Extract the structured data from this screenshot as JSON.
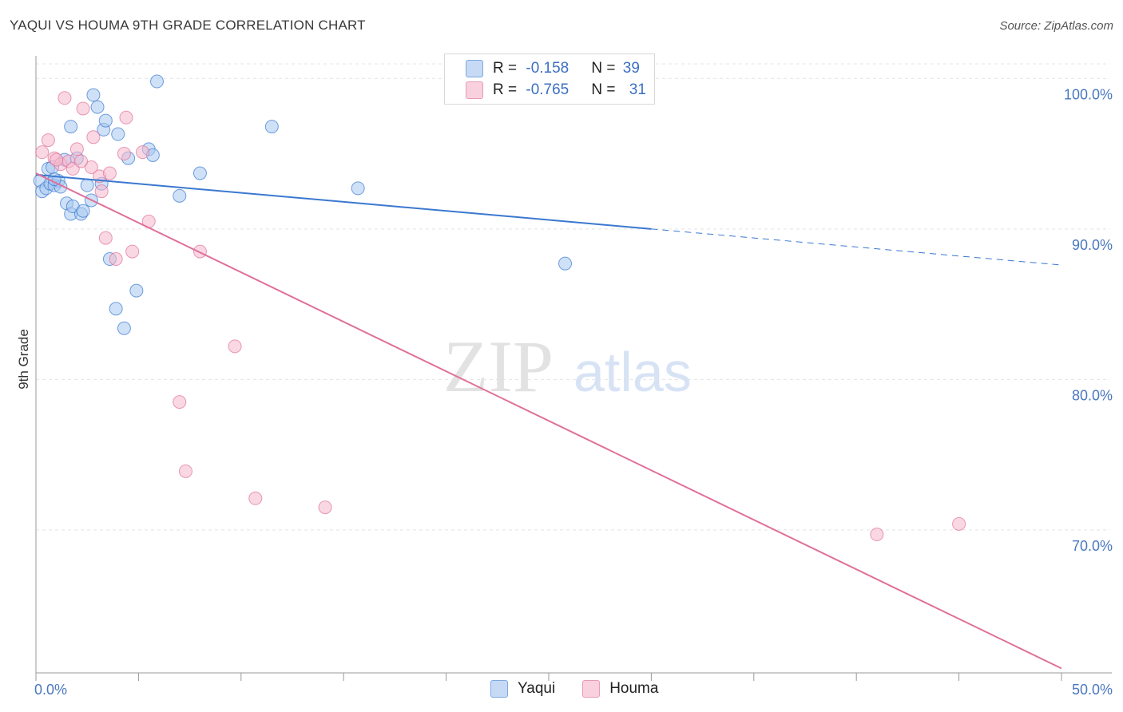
{
  "header": {
    "title": "YAQUI VS HOUMA 9TH GRADE CORRELATION CHART",
    "source": "Source: ZipAtlas.com"
  },
  "legend": {
    "rows": [
      {
        "r_label": "R = ",
        "r_value": "-0.158",
        "n_label": "N = ",
        "n_value": "39",
        "color": "#a8c8f0"
      },
      {
        "r_label": "R = ",
        "r_value": "-0.765",
        "n_label": "N = ",
        "n_value": "31",
        "color": "#f5b8cc"
      }
    ]
  },
  "bottom_legend": [
    {
      "label": "Yaqui",
      "color": "#a8c8f0"
    },
    {
      "label": "Houma",
      "color": "#f5b8cc"
    }
  ],
  "chart_data": {
    "type": "scatter",
    "title": "YAQUI VS HOUMA 9TH GRADE CORRELATION CHART",
    "xlabel": "",
    "ylabel": "9th Grade",
    "xlim": [
      0,
      50
    ],
    "ylim": [
      60.5,
      101.5
    ],
    "x_tick_labels": [
      "0.0%",
      "50.0%"
    ],
    "y_ticks": [
      70,
      80,
      90,
      100
    ],
    "y_tick_labels": [
      "70.0%",
      "80.0%",
      "90.0%",
      "100.0%"
    ],
    "grid": true,
    "legend_position": "top-center",
    "watermark": {
      "zip": "ZIP",
      "atlas": "atlas"
    },
    "series": [
      {
        "name": "Yaqui",
        "color": "#3b78d0",
        "fill": "#a8c8f0",
        "points": [
          [
            0.2,
            93.2
          ],
          [
            0.3,
            92.5
          ],
          [
            0.5,
            92.7
          ],
          [
            0.6,
            94.0
          ],
          [
            0.7,
            93.0
          ],
          [
            0.8,
            94.1
          ],
          [
            0.9,
            92.9
          ],
          [
            1.1,
            93.2
          ],
          [
            1.2,
            92.8
          ],
          [
            1.4,
            94.6
          ],
          [
            1.5,
            91.7
          ],
          [
            1.7,
            91.0
          ],
          [
            1.8,
            91.5
          ],
          [
            2.0,
            94.7
          ],
          [
            2.2,
            91.0
          ],
          [
            2.3,
            91.2
          ],
          [
            2.5,
            92.9
          ],
          [
            2.7,
            91.9
          ],
          [
            2.8,
            98.9
          ],
          [
            3.0,
            98.1
          ],
          [
            3.2,
            93.0
          ],
          [
            3.3,
            96.6
          ],
          [
            3.4,
            97.2
          ],
          [
            3.6,
            88.0
          ],
          [
            3.9,
            84.7
          ],
          [
            4.0,
            96.3
          ],
          [
            4.3,
            83.4
          ],
          [
            4.5,
            94.7
          ],
          [
            4.9,
            85.9
          ],
          [
            5.5,
            95.3
          ],
          [
            5.7,
            94.9
          ],
          [
            5.9,
            99.8
          ],
          [
            7.0,
            92.2
          ],
          [
            8.0,
            93.7
          ],
          [
            11.5,
            96.8
          ],
          [
            15.7,
            92.7
          ],
          [
            25.8,
            87.7
          ],
          [
            1.7,
            96.8
          ],
          [
            0.9,
            93.3
          ]
        ],
        "trend": {
          "x": [
            0,
            30
          ],
          "y": [
            93.6,
            90.0
          ]
        },
        "trend_dashed": {
          "x": [
            30,
            50
          ],
          "y": [
            90.0,
            87.6
          ]
        }
      },
      {
        "name": "Houma",
        "color": "#e0709a",
        "fill": "#f5b8cc",
        "points": [
          [
            0.3,
            95.1
          ],
          [
            0.6,
            95.9
          ],
          [
            0.9,
            94.7
          ],
          [
            1.2,
            94.3
          ],
          [
            1.4,
            98.7
          ],
          [
            1.6,
            94.5
          ],
          [
            1.8,
            94.0
          ],
          [
            2.0,
            95.3
          ],
          [
            2.3,
            98.0
          ],
          [
            2.7,
            94.1
          ],
          [
            2.8,
            96.1
          ],
          [
            3.1,
            93.5
          ],
          [
            3.2,
            92.5
          ],
          [
            3.4,
            89.4
          ],
          [
            3.6,
            93.7
          ],
          [
            3.9,
            88.0
          ],
          [
            4.3,
            95.0
          ],
          [
            4.4,
            97.4
          ],
          [
            4.7,
            88.5
          ],
          [
            5.2,
            95.1
          ],
          [
            5.5,
            90.5
          ],
          [
            7.0,
            78.5
          ],
          [
            7.3,
            73.9
          ],
          [
            8.0,
            88.5
          ],
          [
            9.7,
            82.2
          ],
          [
            10.7,
            72.1
          ],
          [
            14.1,
            71.5
          ],
          [
            41.0,
            69.7
          ],
          [
            45.0,
            70.4
          ],
          [
            1.0,
            94.6
          ],
          [
            2.2,
            94.5
          ]
        ],
        "trend": {
          "x": [
            0,
            50
          ],
          "y": [
            93.7,
            60.8
          ]
        }
      }
    ]
  }
}
